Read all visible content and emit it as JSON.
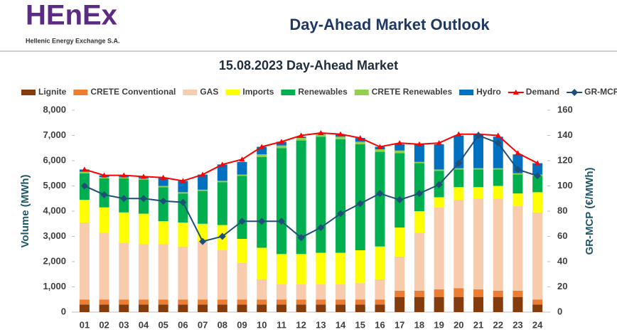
{
  "header": {
    "logo": "HEnEx",
    "company": "Hellenic Energy Exchange S.A.",
    "title": "Day-Ahead Market Outlook"
  },
  "chart_data": {
    "type": "bar",
    "stacked": true,
    "title": "15.08.2023  Day-Ahead Market",
    "y_label": "Volume (MWh)",
    "y2_label": "GR-MCP (€/MWh)",
    "categories": [
      "01",
      "02",
      "03",
      "04",
      "05",
      "06",
      "07",
      "08",
      "09",
      "10",
      "11",
      "12",
      "13",
      "14",
      "15",
      "16",
      "17",
      "18",
      "19",
      "20",
      "21",
      "22",
      "23",
      "24"
    ],
    "ylim": [
      0,
      8000
    ],
    "yticks": [
      0,
      {
        "value": 1000,
        "label": "1,000"
      },
      {
        "value": 2000,
        "label": "2,000"
      },
      {
        "value": 3000,
        "label": "3,000"
      },
      {
        "value": 4000,
        "label": "4,000"
      },
      {
        "value": 5000,
        "label": "5,000"
      },
      {
        "value": 6000,
        "label": "6,000"
      },
      {
        "value": 7000,
        "label": "7,000"
      },
      {
        "value": 8000,
        "label": "8,000"
      }
    ],
    "y2lim": [
      0,
      160
    ],
    "y2ticks": [
      0,
      20,
      40,
      60,
      80,
      100,
      120,
      140,
      160
    ],
    "series": [
      {
        "name": "Lignite",
        "color": "#843c0c",
        "values": [
          300,
          300,
          300,
          300,
          300,
          300,
          300,
          300,
          300,
          300,
          300,
          300,
          300,
          300,
          300,
          300,
          600,
          600,
          600,
          600,
          600,
          600,
          600,
          300
        ]
      },
      {
        "name": "CRETE Conventional",
        "color": "#ed7d31",
        "values": [
          200,
          200,
          200,
          200,
          200,
          200,
          200,
          200,
          200,
          200,
          200,
          200,
          200,
          200,
          200,
          200,
          250,
          250,
          300,
          350,
          300,
          250,
          250,
          200
        ]
      },
      {
        "name": "GAS",
        "color": "#f8cbad",
        "values": [
          3050,
          2650,
          2250,
          2200,
          2200,
          2100,
          2300,
          1950,
          1450,
          800,
          600,
          600,
          600,
          600,
          650,
          800,
          1350,
          2300,
          3250,
          3500,
          3600,
          3650,
          3350,
          3450
        ]
      },
      {
        "name": "Imports",
        "color": "#ffff00",
        "values": [
          900,
          1000,
          1200,
          1200,
          900,
          950,
          700,
          1000,
          950,
          1250,
          1200,
          1200,
          1250,
          1250,
          1300,
          1300,
          1150,
          850,
          400,
          500,
          450,
          500,
          500,
          800
        ]
      },
      {
        "name": "Renewables",
        "color": "#00b050",
        "values": [
          1050,
          1150,
          1350,
          1350,
          1350,
          1150,
          1300,
          1700,
          2500,
          3600,
          4200,
          4500,
          4600,
          4500,
          4200,
          3750,
          2950,
          1900,
          1050,
          700,
          700,
          650,
          750,
          650
        ]
      },
      {
        "name": "CRETE Renewables",
        "color": "#92d050",
        "values": [
          60,
          50,
          40,
          50,
          50,
          50,
          50,
          50,
          50,
          100,
          100,
          100,
          100,
          100,
          100,
          100,
          100,
          50,
          50,
          50,
          50,
          50,
          50,
          50
        ]
      },
      {
        "name": "Hydro",
        "color": "#0070c0",
        "values": [
          90,
          70,
          80,
          70,
          330,
          450,
          600,
          650,
          500,
          300,
          150,
          50,
          50,
          100,
          150,
          100,
          250,
          700,
          1000,
          1300,
          1350,
          1250,
          750,
          450
        ]
      },
      {
        "name": "Demand",
        "type": "line",
        "color": "#ff0000",
        "values": [
          5650,
          5420,
          5420,
          5370,
          5330,
          5200,
          5450,
          5850,
          6050,
          6550,
          6750,
          7000,
          7100,
          7050,
          6900,
          6550,
          6700,
          6650,
          6700,
          7050,
          7050,
          7000,
          6300,
          5900
        ]
      },
      {
        "name": "GR-MCP",
        "type": "line",
        "axis": "y2",
        "color": "#1f4e79",
        "values": [
          100,
          93,
          90,
          90,
          88,
          87,
          56,
          60,
          72,
          72,
          72,
          59,
          67,
          78,
          86,
          94,
          89,
          94,
          101,
          118,
          140,
          134,
          113,
          108
        ]
      }
    ]
  }
}
